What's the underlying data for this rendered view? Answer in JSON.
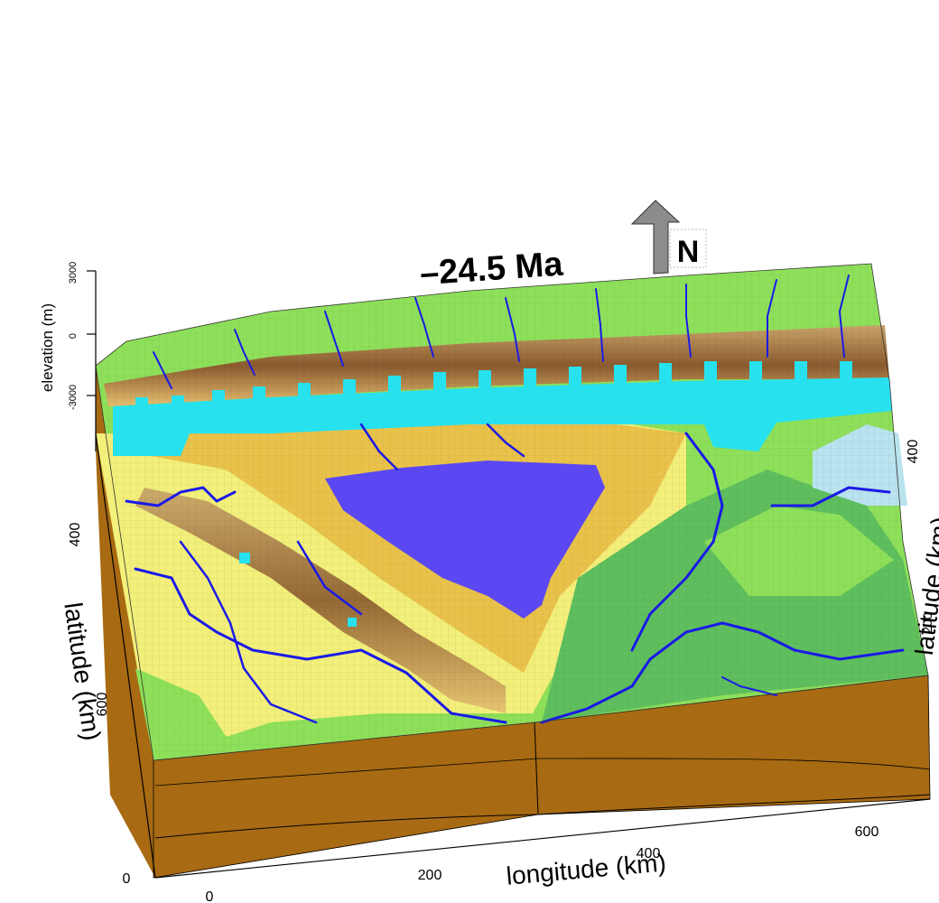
{
  "title": "–24.5 Ma",
  "north_label": "N",
  "axes": {
    "elevation_label": "elevation (m)",
    "latitude_label": "latitude (km)",
    "longitude_label": "longitude (km)",
    "elevation_ticks": [
      "3000",
      "0",
      "-3000"
    ],
    "latitude_ticks_left": [
      "400",
      "600"
    ],
    "latitude_ticks_right": [
      "400",
      "200"
    ],
    "longitude_ticks": [
      "0",
      "200",
      "400",
      "600"
    ],
    "front_corner_tick": "0"
  },
  "colors": {
    "lowland_green": "#8ee05a",
    "deep_green": "#5fbf5e",
    "yellow_plain": "#f2ef7a",
    "ochre_hills": "#e9c24a",
    "brown_ridge": "#8a5a2e",
    "crust_side": "#a86a12",
    "rivers": "#1a1ae6",
    "lake": "#5b48f2",
    "coastal_strip": "#27e1ef",
    "sea": "#b9e3ee",
    "north_arrow": "#8c8c8c"
  }
}
